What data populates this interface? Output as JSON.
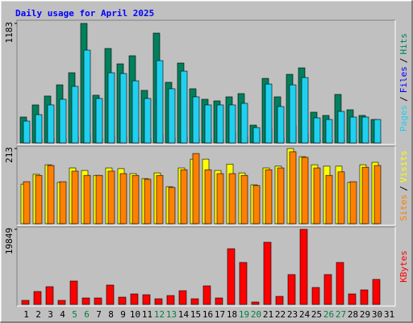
{
  "chart_data": [
    {
      "type": "bar",
      "title": "Daily usage for April 2025",
      "legend_separator": "/",
      "ylim": [
        0,
        1183
      ],
      "yticks": [
        1183
      ],
      "series": [
        {
          "name": "Hits",
          "color": "#00805C",
          "values": [
            256,
            376,
            464,
            575,
            695,
            1183,
            472,
            935,
            783,
            863,
            520,
            1087,
            600,
            791,
            536,
            432,
            416,
            456,
            488,
            176,
            639,
            456,
            679,
            743,
            304,
            272,
            480,
            328,
            272,
            232,
            null
          ]
        },
        {
          "name": "Files",
          "color": "#0000FF",
          "values": [
            30,
            40,
            50,
            45,
            60,
            80,
            50,
            70,
            60,
            55,
            45,
            80,
            50,
            60,
            45,
            40,
            40,
            110,
            60,
            120,
            140,
            50,
            170,
            90,
            30,
            30,
            40,
            30,
            30,
            25,
            null
          ]
        },
        {
          "name": "Pages",
          "color": "#20D0F0",
          "values": [
            216,
            280,
            376,
            432,
            560,
            919,
            440,
            695,
            687,
            615,
            440,
            815,
            536,
            711,
            456,
            376,
            376,
            376,
            392,
            152,
            583,
            360,
            575,
            647,
            248,
            232,
            312,
            256,
            256,
            232,
            null
          ]
        }
      ]
    },
    {
      "type": "bar",
      "legend_separator": "/",
      "ylim": [
        0,
        213
      ],
      "yticks": [
        213
      ],
      "series": [
        {
          "name": "Visits",
          "color": "#FFFF00",
          "values": [
            112,
            140,
            167,
            117,
            158,
            151,
            137,
            158,
            156,
            142,
            128,
            144,
            105,
            158,
            183,
            183,
            151,
            169,
            144,
            110,
            158,
            163,
            213,
            190,
            167,
            163,
            163,
            117,
            167,
            174,
            null
          ]
        },
        {
          "name": "Sites",
          "color": "#FF8000",
          "values": [
            119,
            137,
            165,
            119,
            149,
            137,
            137,
            149,
            142,
            137,
            126,
            137,
            103,
            153,
            199,
            153,
            142,
            142,
            137,
            108,
            153,
            158,
            204,
            188,
            158,
            137,
            147,
            119,
            160,
            165,
            null
          ]
        }
      ]
    },
    {
      "type": "bar",
      "ylim": [
        0,
        19849
      ],
      "yticks": [
        19849
      ],
      "series": [
        {
          "name": "KBytes",
          "color": "#FF0000",
          "values": [
            1067,
            3415,
            4695,
            1067,
            6189,
            1707,
            1707,
            5122,
            1921,
            2774,
            2561,
            1494,
            2348,
            3628,
            1494,
            4908,
            1707,
            14725,
            11097,
            640,
            16432,
            2134,
            7896,
            19849,
            4481,
            7896,
            11097,
            2774,
            3841,
            6616,
            null
          ]
        }
      ],
      "categories": [
        "1",
        "2",
        "3",
        "4",
        "5",
        "6",
        "7",
        "8",
        "9",
        "10",
        "11",
        "12",
        "13",
        "14",
        "15",
        "16",
        "17",
        "18",
        "19",
        "20",
        "21",
        "22",
        "23",
        "24",
        "25",
        "26",
        "27",
        "28",
        "29",
        "30",
        "31"
      ],
      "category_colors": [
        "#000000",
        "#000000",
        "#000000",
        "#000000",
        "#008040",
        "#008040",
        "#000000",
        "#000000",
        "#000000",
        "#000000",
        "#000000",
        "#008040",
        "#008040",
        "#000000",
        "#000000",
        "#000000",
        "#000000",
        "#000000",
        "#008040",
        "#008040",
        "#000000",
        "#000000",
        "#000000",
        "#000000",
        "#000000",
        "#008040",
        "#008040",
        "#000000",
        "#000000",
        "#000000",
        "#000000"
      ]
    }
  ]
}
